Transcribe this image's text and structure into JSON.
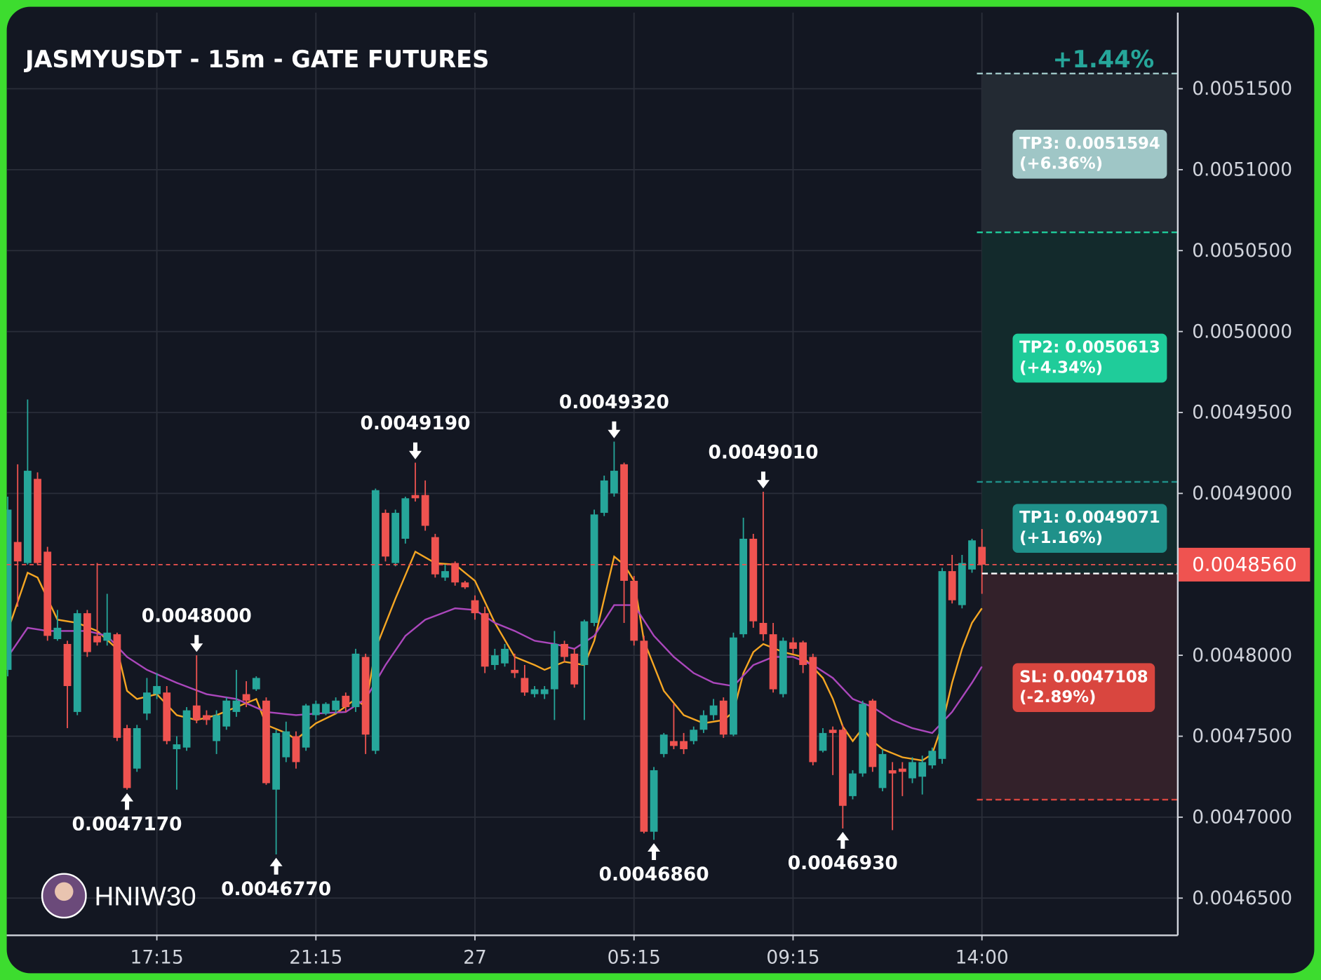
{
  "chart_data": {
    "type": "candlestick",
    "title": "JASMYUSDT - 15m - GATE FUTURES",
    "watermark": "HNIW30",
    "colors": {
      "up": "#26a69a",
      "down": "#ef5350"
    },
    "xlim": [
      -0.1,
      117.7
    ],
    "ylim": [
      0.004627,
      0.005197
    ],
    "grid": true,
    "xticks": [
      {
        "value": 15,
        "label": "17:15"
      },
      {
        "value": 31,
        "label": "21:15"
      },
      {
        "value": 47,
        "label": "27"
      },
      {
        "value": 63,
        "label": "05:15"
      },
      {
        "value": 79,
        "label": "09:15"
      },
      {
        "value": 98,
        "label": "14:00"
      }
    ],
    "yticks": [
      {
        "value": 0.00515,
        "label": "0.0051500"
      },
      {
        "value": 0.0051,
        "label": "0.0051000"
      },
      {
        "value": 0.00505,
        "label": "0.0050500"
      },
      {
        "value": 0.005,
        "label": "0.0050000"
      },
      {
        "value": 0.00495,
        "label": "0.0049500"
      },
      {
        "value": 0.0049,
        "label": "0.0049000"
      },
      {
        "value": 0.0048,
        "label": "0.0048000"
      },
      {
        "value": 0.00475,
        "label": "0.0047500"
      },
      {
        "value": 0.0047,
        "label": "0.0047000"
      },
      {
        "value": 0.00465,
        "label": "0.0046500"
      }
    ],
    "open": [
      0.004791,
      0.00487,
      0.004857,
      0.004909,
      0.004864,
      0.00481,
      0.004807,
      0.004765,
      0.004826,
      0.004812,
      0.004809,
      0.004813,
      0.004755,
      0.00473,
      0.004764,
      0.004776,
      0.004777,
      0.004742,
      0.004743,
      0.004769,
      0.004763,
      0.004747,
      0.004756,
      0.004765,
      0.004776,
      0.004779,
      0.004772,
      0.004717,
      0.004737,
      0.00475,
      0.004743,
      0.004763,
      0.004764,
      0.004766,
      0.004775,
      0.004768,
      0.004799,
      0.004741,
      0.004888,
      0.004857,
      0.004872,
      0.004899,
      0.004899,
      0.004873,
      0.004848,
      0.004857,
      0.004845,
      0.004834,
      0.004826,
      0.004794,
      0.004795,
      0.004791,
      0.004786,
      0.004776,
      0.004776,
      0.004779,
      0.004807,
      0.004801,
      0.004794,
      0.00482,
      0.004888,
      0.0049,
      0.004918,
      0.004846,
      0.004809,
      0.004691,
      0.004739,
      0.004747,
      0.004747,
      0.004747,
      0.004754,
      0.004763,
      0.004772,
      0.004751,
      0.004813,
      0.004872,
      0.00482,
      0.004813,
      0.004776,
      0.004808,
      0.004808,
      0.004799,
      0.004741,
      0.004754,
      0.004754,
      0.004713,
      0.004727,
      0.004772,
      0.004718,
      0.004729,
      0.00473,
      0.004724,
      0.004725,
      0.004732,
      0.004736,
      0.004852,
      0.004831,
      0.004853,
      0.004867
    ],
    "high": [
      0.004898,
      0.004918,
      0.004958,
      0.004913,
      0.004867,
      0.004828,
      0.004809,
      0.004828,
      0.004828,
      0.004857,
      0.004838,
      0.004814,
      0.004757,
      0.004757,
      0.004786,
      0.004789,
      0.004781,
      0.00475,
      0.004768,
      0.0048,
      0.004766,
      0.004766,
      0.004774,
      0.004791,
      0.004784,
      0.004787,
      0.004774,
      0.004754,
      0.004759,
      0.004753,
      0.00477,
      0.004772,
      0.004771,
      0.004774,
      0.004777,
      0.004804,
      0.004801,
      0.004903,
      0.00489,
      0.00489,
      0.004898,
      0.004919,
      0.004908,
      0.004875,
      0.004856,
      0.004858,
      0.004846,
      0.004837,
      0.00483,
      0.004804,
      0.004807,
      0.004801,
      0.004794,
      0.004781,
      0.004781,
      0.004815,
      0.004809,
      0.004804,
      0.004822,
      0.00489,
      0.004911,
      0.004932,
      0.004919,
      0.004849,
      0.004812,
      0.004731,
      0.004752,
      0.00477,
      0.004752,
      0.004756,
      0.004766,
      0.004773,
      0.004774,
      0.004814,
      0.004885,
      0.004875,
      0.004901,
      0.00482,
      0.004811,
      0.004811,
      0.004809,
      0.004801,
      0.004755,
      0.004756,
      0.004757,
      0.004729,
      0.004772,
      0.004773,
      0.004742,
      0.004734,
      0.004734,
      0.004737,
      0.004738,
      0.004743,
      0.004854,
      0.004862,
      0.004862,
      0.004872,
      0.004878
    ],
    "low": [
      0.004787,
      0.00483,
      0.004856,
      0.004856,
      0.004809,
      0.004809,
      0.004755,
      0.004763,
      0.004799,
      0.004806,
      0.004806,
      0.004747,
      0.004717,
      0.004728,
      0.00476,
      0.004773,
      0.004745,
      0.004717,
      0.004741,
      0.004758,
      0.004757,
      0.004739,
      0.004754,
      0.004762,
      0.004768,
      0.004778,
      0.00472,
      0.004677,
      0.004734,
      0.00473,
      0.004741,
      0.00476,
      0.004763,
      0.004764,
      0.004765,
      0.004765,
      0.004739,
      0.004739,
      0.004858,
      0.004855,
      0.004869,
      0.004895,
      0.004877,
      0.004848,
      0.004846,
      0.004843,
      0.004841,
      0.004822,
      0.004789,
      0.004791,
      0.004793,
      0.004786,
      0.004775,
      0.004774,
      0.004773,
      0.00476,
      0.004796,
      0.00478,
      0.00476,
      0.004818,
      0.004886,
      0.004898,
      0.00482,
      0.004806,
      0.00469,
      0.004686,
      0.004737,
      0.004742,
      0.004739,
      0.004745,
      0.004752,
      0.00476,
      0.004749,
      0.00475,
      0.004811,
      0.004817,
      0.004809,
      0.004777,
      0.004774,
      0.004801,
      0.004789,
      0.004732,
      0.00474,
      0.004726,
      0.004693,
      0.004711,
      0.004725,
      0.004728,
      0.004716,
      0.004692,
      0.004713,
      0.004721,
      0.004714,
      0.00473,
      0.004733,
      0.004832,
      0.004829,
      0.004851,
      0.004838
    ],
    "close": [
      0.00489,
      0.004858,
      0.004914,
      0.004857,
      0.004812,
      0.004817,
      0.004781,
      0.004826,
      0.004802,
      0.004808,
      0.004814,
      0.004749,
      0.004718,
      0.004755,
      0.004777,
      0.004781,
      0.004747,
      0.004745,
      0.004766,
      0.00476,
      0.00476,
      0.004763,
      0.004772,
      0.004772,
      0.004772,
      0.004786,
      0.004721,
      0.004752,
      0.004753,
      0.004734,
      0.004769,
      0.00477,
      0.00477,
      0.004772,
      0.004768,
      0.004801,
      0.004751,
      0.004902,
      0.004861,
      0.004888,
      0.004897,
      0.004897,
      0.00488,
      0.00485,
      0.004852,
      0.004845,
      0.004842,
      0.004826,
      0.004793,
      0.0048,
      0.004804,
      0.004789,
      0.004777,
      0.004779,
      0.004779,
      0.004807,
      0.004799,
      0.004782,
      0.004821,
      0.004887,
      0.004908,
      0.004914,
      0.004846,
      0.004809,
      0.004691,
      0.004729,
      0.004751,
      0.004744,
      0.004742,
      0.004754,
      0.004763,
      0.004769,
      0.004751,
      0.004811,
      0.004872,
      0.004821,
      0.004813,
      0.004779,
      0.004809,
      0.004804,
      0.004794,
      0.004734,
      0.004752,
      0.004752,
      0.004707,
      0.004727,
      0.00477,
      0.004731,
      0.004739,
      0.004727,
      0.004728,
      0.004734,
      0.004734,
      0.004741,
      0.004852,
      0.004834,
      0.004857,
      0.004871,
      0.004856
    ],
    "ma": [
      {
        "color": "#f5a623",
        "x": [
          0,
          2,
          3,
          5,
          7,
          9,
          11,
          12,
          13,
          15,
          17,
          19,
          21,
          23,
          25,
          26,
          28,
          29,
          31,
          33,
          35,
          36,
          37,
          39,
          41,
          43,
          45,
          47,
          49,
          51,
          53,
          54,
          56,
          58,
          59,
          61,
          62,
          63,
          64,
          66,
          68,
          70,
          72,
          73,
          74,
          75,
          76,
          78,
          80,
          82,
          83,
          84,
          85,
          86,
          87,
          88,
          90,
          92,
          93,
          94,
          95,
          96,
          97,
          98
        ],
        "values": [
          0.004815,
          0.004851,
          0.004848,
          0.004822,
          0.00482,
          0.004815,
          0.004804,
          0.004778,
          0.004773,
          0.004776,
          0.004763,
          0.00476,
          0.004763,
          0.004768,
          0.004773,
          0.004757,
          0.004752,
          0.004748,
          0.004758,
          0.004764,
          0.004773,
          0.004768,
          0.004804,
          0.004835,
          0.004864,
          0.004857,
          0.004856,
          0.004846,
          0.00482,
          0.004799,
          0.004794,
          0.004791,
          0.004796,
          0.004794,
          0.004809,
          0.004861,
          0.004856,
          0.004846,
          0.004809,
          0.004778,
          0.004763,
          0.004758,
          0.00476,
          0.004765,
          0.004789,
          0.004802,
          0.004807,
          0.004802,
          0.004799,
          0.004786,
          0.004773,
          0.004756,
          0.004747,
          0.004755,
          0.004747,
          0.004742,
          0.004737,
          0.004735,
          0.004739,
          0.004757,
          0.004783,
          0.004804,
          0.00482,
          0.004829
        ]
      },
      {
        "color": "#ab47bc",
        "x": [
          0,
          2,
          4,
          6,
          8,
          10,
          12,
          14,
          17,
          20,
          23,
          26,
          29,
          31,
          34,
          36,
          38,
          40,
          42,
          45,
          47,
          49,
          51,
          53,
          55,
          57,
          59,
          61,
          63,
          65,
          67,
          69,
          71,
          73,
          75,
          77,
          79,
          81,
          83,
          85,
          87,
          89,
          91,
          93,
          95,
          97,
          98
        ],
        "values": [
          0.004799,
          0.004817,
          0.004815,
          0.004815,
          0.004815,
          0.004812,
          0.004799,
          0.004791,
          0.004783,
          0.004776,
          0.004773,
          0.004765,
          0.004763,
          0.004764,
          0.004765,
          0.004773,
          0.004794,
          0.004812,
          0.004822,
          0.004829,
          0.004828,
          0.00482,
          0.004815,
          0.004809,
          0.004807,
          0.004804,
          0.004812,
          0.004831,
          0.004831,
          0.004812,
          0.004799,
          0.004789,
          0.004783,
          0.004781,
          0.004794,
          0.004799,
          0.004799,
          0.004794,
          0.004786,
          0.004773,
          0.004768,
          0.00476,
          0.004755,
          0.004752,
          0.004765,
          0.004783,
          0.004793
        ]
      }
    ],
    "annotations": [
      {
        "x": 19,
        "kind": "high",
        "value": 0.0048,
        "label": "0.0048000"
      },
      {
        "x": 12,
        "kind": "low",
        "value": 0.004717,
        "label": "0.0047170"
      },
      {
        "x": 27,
        "kind": "low",
        "value": 0.004677,
        "label": "0.0046770"
      },
      {
        "x": 41,
        "kind": "high",
        "value": 0.004919,
        "label": "0.0049190"
      },
      {
        "x": 61,
        "kind": "high",
        "value": 0.004932,
        "label": "0.0049320"
      },
      {
        "x": 65,
        "kind": "low",
        "value": 0.004686,
        "label": "0.0046860"
      },
      {
        "x": 76,
        "kind": "high",
        "value": 0.004901,
        "label": "0.0049010"
      },
      {
        "x": 84,
        "kind": "low",
        "value": 0.004693,
        "label": "0.0046930"
      }
    ],
    "last_price": {
      "value": 0.004856,
      "label": "0.0048560",
      "color": "#ef5350"
    },
    "position": {
      "start": 98,
      "entry": 0.0048505,
      "result": "+1.44%",
      "targets": [
        {
          "value": 0.0051594,
          "label": "TP3: 0.0051594",
          "change": "(+6.36%)",
          "color": "#9fc6c6"
        },
        {
          "value": 0.0050613,
          "label": "TP2: 0.0050613",
          "change": "(+4.34%)",
          "color": "#1fcc9a"
        },
        {
          "value": 0.0049071,
          "label": "TP1: 0.0049071",
          "change": "(+1.16%)",
          "color": "#1f918a"
        }
      ],
      "stop": {
        "value": 0.0047108,
        "label": "SL: 0.0047108",
        "change": "(-2.89%)",
        "color": "#d9463f"
      }
    }
  }
}
